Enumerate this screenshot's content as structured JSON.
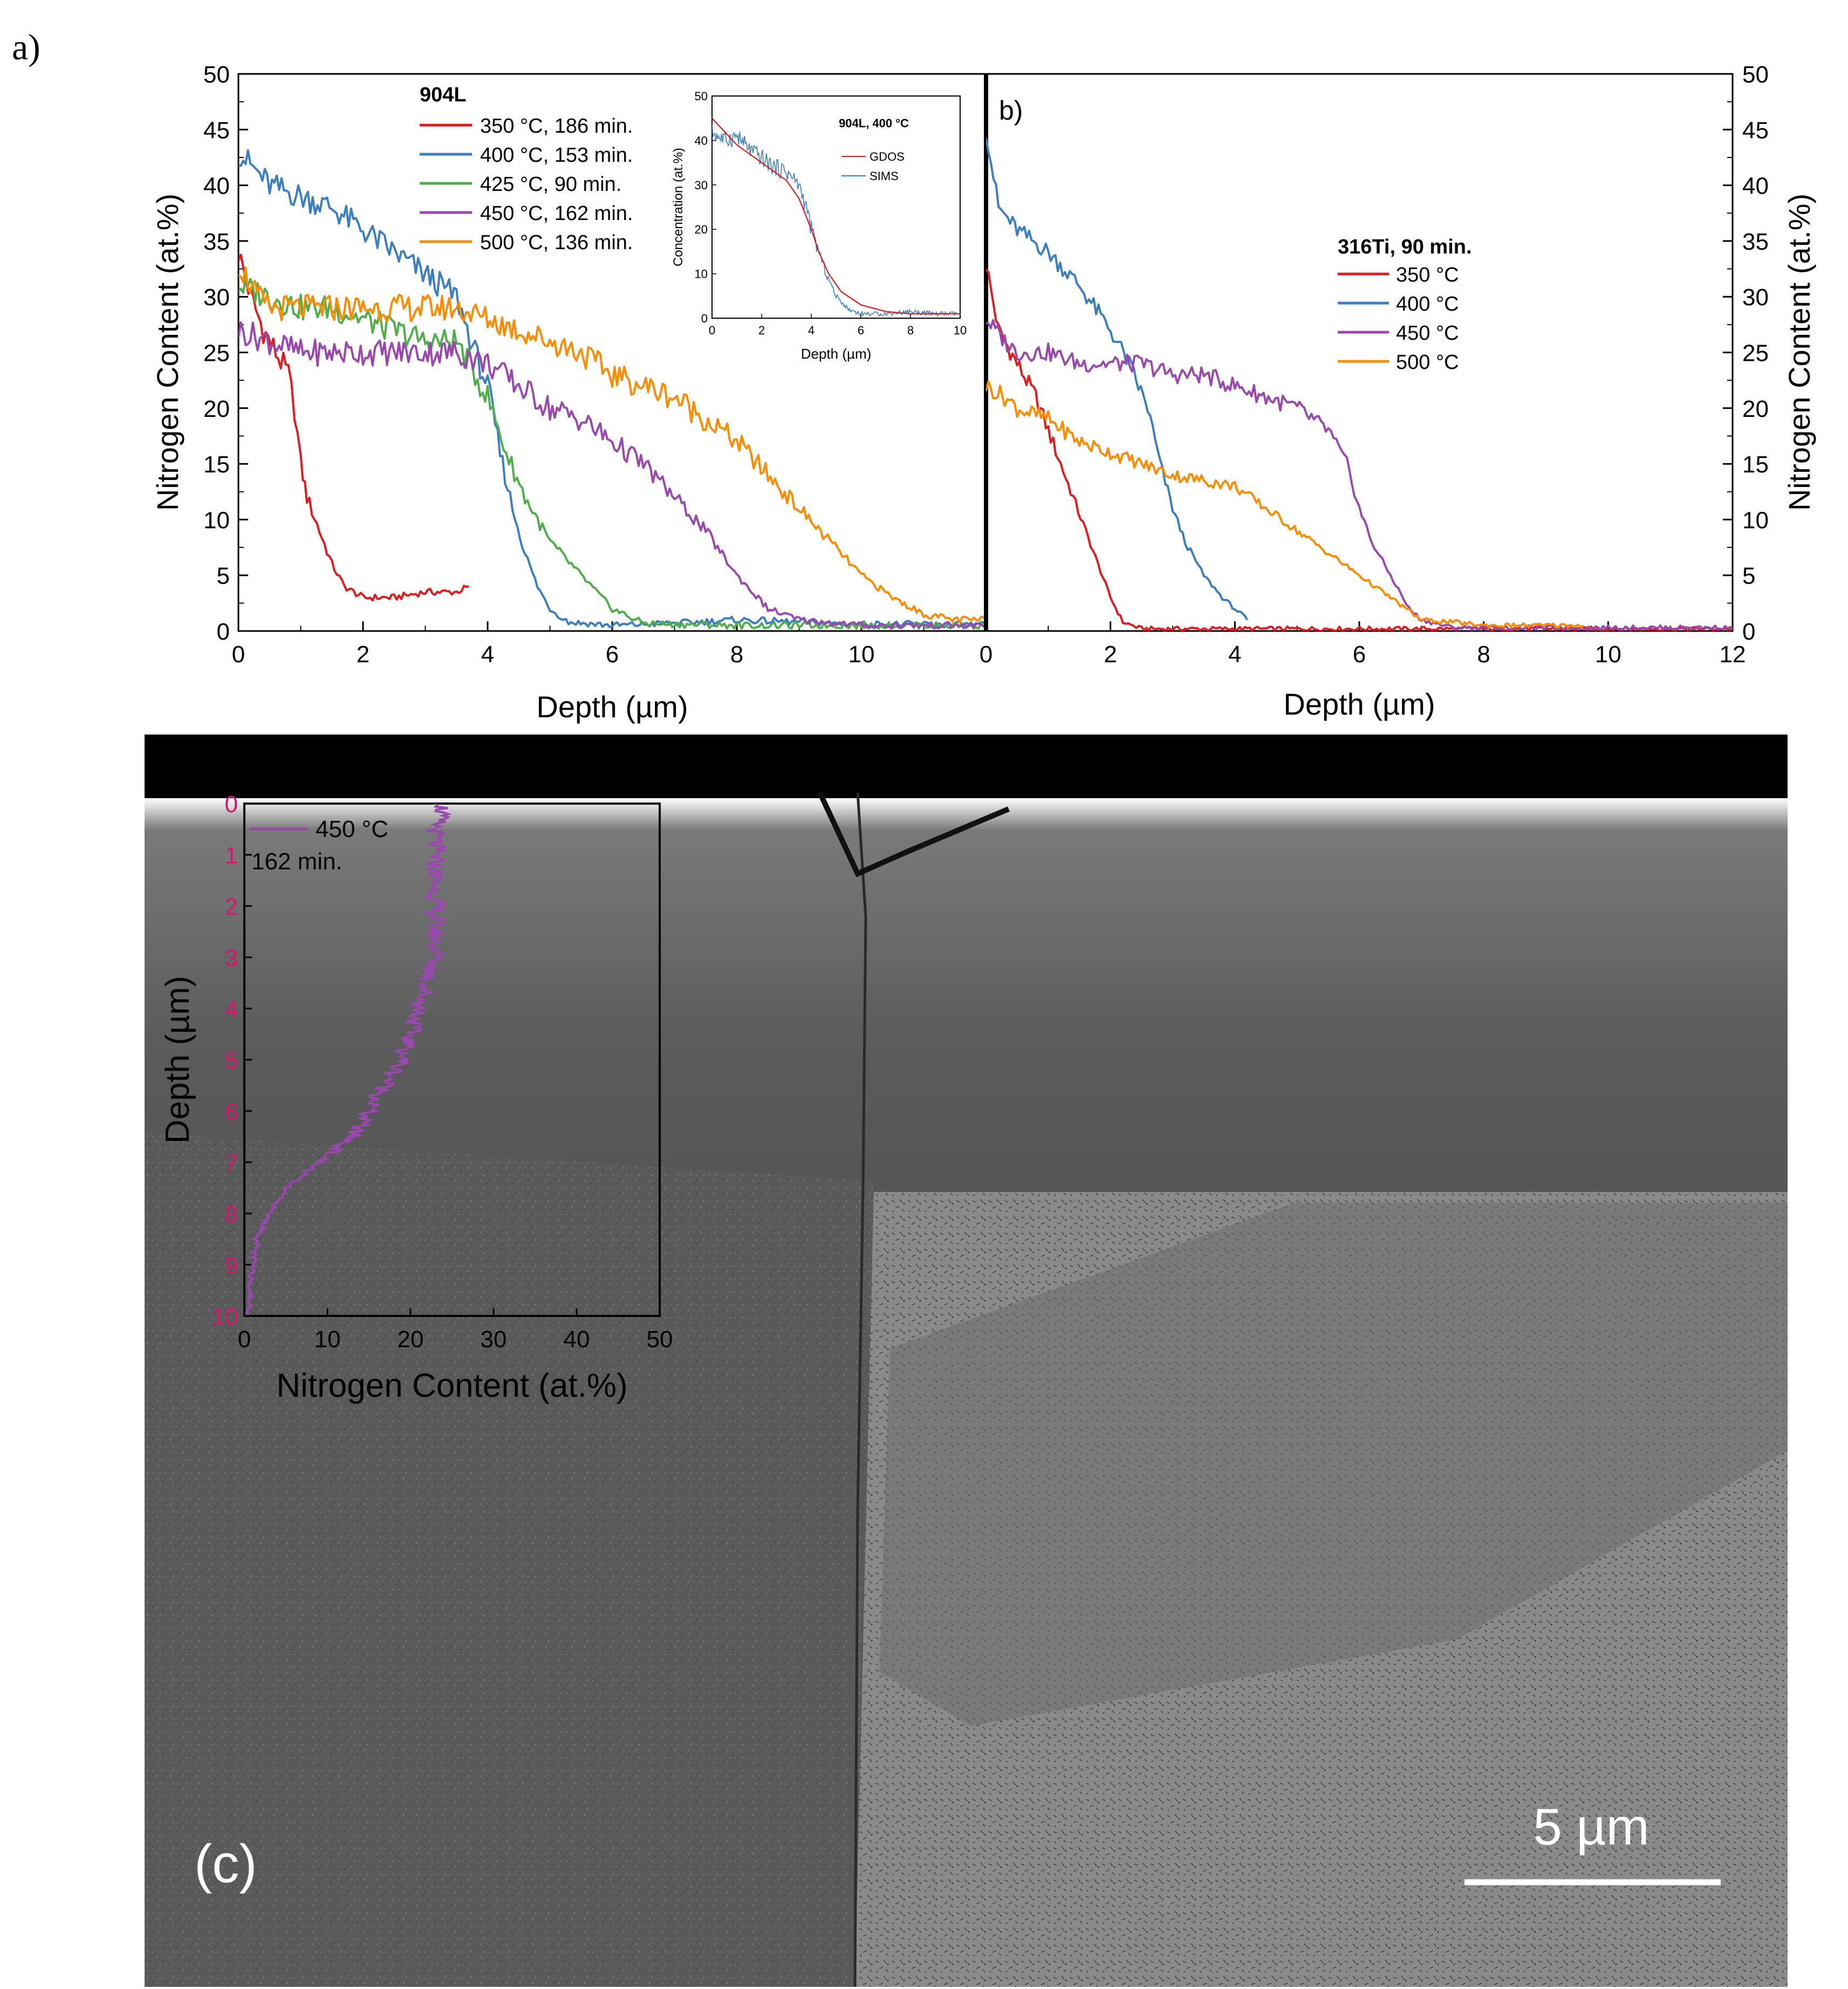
{
  "figure": {
    "panel_a_label": "a)",
    "panel_b_label": "b)",
    "panel_c_label": "(c)",
    "scale_bar_label": "5  µm",
    "colors": {
      "red": "#e41a1c",
      "blue": "#3a7fc1",
      "green": "#4daf4a",
      "purple": "#9b47b0",
      "orange": "#ff8c00",
      "tick_magenta": "#d6166e",
      "sem_dark": "#4a4a4a",
      "sem_light": "#8e8e8e"
    }
  },
  "chart_data": [
    {
      "id": "panel_a",
      "type": "line",
      "xlabel": "Depth (µm)",
      "ylabel": "Nitrogen Content (at.%)",
      "xlim": [
        0,
        12
      ],
      "ylim": [
        0,
        50
      ],
      "xticks": [
        "0",
        "2",
        "4",
        "6",
        "8",
        "10"
      ],
      "yticks": [
        "0",
        "5",
        "10",
        "15",
        "20",
        "25",
        "30",
        "35",
        "40",
        "45",
        "50"
      ],
      "legend_title": "904L",
      "legend_position": "top-center",
      "series": [
        {
          "name": "350 °C, 186 min.",
          "color": "red",
          "points": [
            [
              0,
              34
            ],
            [
              0.2,
              30
            ],
            [
              0.4,
              27
            ],
            [
              0.6,
              25
            ],
            [
              0.8,
              23
            ],
            [
              0.9,
              20
            ],
            [
              1.0,
              15
            ],
            [
              1.1,
              12
            ],
            [
              1.3,
              9
            ],
            [
              1.5,
              6
            ],
            [
              1.7,
              4
            ],
            [
              2.0,
              3
            ],
            [
              2.5,
              3
            ],
            [
              3.0,
              3.5
            ],
            [
              3.5,
              3.5
            ],
            [
              3.7,
              4
            ]
          ]
        },
        {
          "name": "400 °C, 153 min.",
          "color": "blue",
          "points": [
            [
              0,
              43
            ],
            [
              0.5,
              40
            ],
            [
              1.0,
              39
            ],
            [
              1.5,
              38
            ],
            [
              2.0,
              36
            ],
            [
              2.5,
              34
            ],
            [
              3.0,
              32
            ],
            [
              3.5,
              30
            ],
            [
              3.8,
              25
            ],
            [
              4.0,
              22
            ],
            [
              4.2,
              16
            ],
            [
              4.4,
              11
            ],
            [
              4.6,
              7
            ],
            [
              4.8,
              4
            ],
            [
              5.0,
              2
            ],
            [
              5.3,
              0.8
            ],
            [
              6,
              0.5
            ],
            [
              7,
              0.7
            ],
            [
              8,
              1
            ],
            [
              9,
              0.8
            ],
            [
              10,
              0.6
            ],
            [
              11,
              0.6
            ],
            [
              12,
              0.5
            ]
          ]
        },
        {
          "name": "425 °C, 90 min.",
          "color": "green",
          "points": [
            [
              0,
              31
            ],
            [
              0.5,
              30
            ],
            [
              1.0,
              29
            ],
            [
              1.5,
              29
            ],
            [
              2.0,
              28
            ],
            [
              2.5,
              27
            ],
            [
              3.0,
              26
            ],
            [
              3.5,
              26
            ],
            [
              3.8,
              23
            ],
            [
              4.0,
              21
            ],
            [
              4.3,
              16
            ],
            [
              4.6,
              12
            ],
            [
              5.0,
              8
            ],
            [
              5.5,
              5
            ],
            [
              6.0,
              2
            ],
            [
              6.5,
              0.7
            ],
            [
              7,
              0.6
            ],
            [
              8,
              0.5
            ],
            [
              9,
              0.5
            ],
            [
              10,
              0.5
            ],
            [
              11,
              0.5
            ],
            [
              12,
              0.5
            ]
          ]
        },
        {
          "name": "450 °C, 162 min.",
          "color": "purple",
          "points": [
            [
              0,
              27
            ],
            [
              0.5,
              26
            ],
            [
              1.0,
              25
            ],
            [
              1.5,
              25
            ],
            [
              2.0,
              25
            ],
            [
              2.5,
              25
            ],
            [
              3.0,
              25
            ],
            [
              3.5,
              25
            ],
            [
              4.0,
              24
            ],
            [
              4.5,
              22
            ],
            [
              5.0,
              20
            ],
            [
              5.5,
              19
            ],
            [
              6.0,
              17
            ],
            [
              6.5,
              15
            ],
            [
              7.0,
              12
            ],
            [
              7.5,
              9
            ],
            [
              8.0,
              5
            ],
            [
              8.5,
              2
            ],
            [
              9.0,
              1
            ],
            [
              10,
              0.5
            ],
            [
              11,
              0.5
            ],
            [
              12,
              0.5
            ]
          ]
        },
        {
          "name": "500 °C, 136 min.",
          "color": "orange",
          "points": [
            [
              0,
              33
            ],
            [
              0.3,
              30
            ],
            [
              0.5,
              29
            ],
            [
              1.0,
              29
            ],
            [
              1.5,
              29
            ],
            [
              2.0,
              29
            ],
            [
              2.5,
              29
            ],
            [
              3.0,
              29
            ],
            [
              3.5,
              29
            ],
            [
              4.0,
              28
            ],
            [
              4.5,
              27
            ],
            [
              5.0,
              26
            ],
            [
              5.5,
              25
            ],
            [
              6.0,
              23
            ],
            [
              6.5,
              22
            ],
            [
              7.0,
              21
            ],
            [
              7.5,
              19
            ],
            [
              8.0,
              17
            ],
            [
              8.5,
              14
            ],
            [
              9.0,
              11
            ],
            [
              9.5,
              8
            ],
            [
              10.0,
              5
            ],
            [
              10.5,
              3
            ],
            [
              11.0,
              1.5
            ],
            [
              11.5,
              1
            ],
            [
              12,
              1
            ]
          ]
        }
      ]
    },
    {
      "id": "panel_a_inset",
      "type": "line",
      "title": "904L, 400 °C",
      "xlabel": "Depth (µm)",
      "ylabel": "Concentration (at.%)",
      "xlim": [
        0,
        10
      ],
      "ylim": [
        0,
        50
      ],
      "xticks": [
        "0",
        "2",
        "4",
        "6",
        "8",
        "10"
      ],
      "yticks": [
        "0",
        "10",
        "20",
        "30",
        "40",
        "50"
      ],
      "series": [
        {
          "name": "GDOS",
          "color": "red",
          "points": [
            [
              0,
              45
            ],
            [
              0.5,
              42
            ],
            [
              1,
              39
            ],
            [
              1.5,
              37
            ],
            [
              2,
              35
            ],
            [
              2.5,
              33
            ],
            [
              3,
              31
            ],
            [
              3.5,
              27
            ],
            [
              4,
              20
            ],
            [
              4.3,
              15
            ],
            [
              4.7,
              10
            ],
            [
              5.2,
              6
            ],
            [
              6,
              3
            ],
            [
              7,
              1.5
            ],
            [
              8,
              1
            ],
            [
              10,
              1
            ]
          ]
        },
        {
          "name": "SIMS",
          "color": "blue",
          "points": [
            [
              0,
              42
            ],
            [
              0.5,
              40
            ],
            [
              1,
              41
            ],
            [
              1.5,
              38
            ],
            [
              2,
              36
            ],
            [
              2.5,
              34
            ],
            [
              3,
              33
            ],
            [
              3.5,
              30
            ],
            [
              3.8,
              25
            ],
            [
              4,
              20
            ],
            [
              4.3,
              15
            ],
            [
              4.6,
              10
            ],
            [
              5,
              5
            ],
            [
              5.5,
              2
            ],
            [
              6,
              1
            ],
            [
              7,
              1
            ],
            [
              8,
              1.5
            ],
            [
              9,
              1
            ],
            [
              10,
              1
            ]
          ]
        }
      ]
    },
    {
      "id": "panel_b",
      "type": "line",
      "xlabel": "Depth (µm)",
      "ylabel": "Nitrogen Content (at.%)",
      "xlim": [
        0,
        12
      ],
      "ylim": [
        0,
        50
      ],
      "xticks": [
        "0",
        "2",
        "4",
        "6",
        "8",
        "10",
        "12"
      ],
      "yticks": [
        "0",
        "5",
        "10",
        "15",
        "20",
        "25",
        "30",
        "35",
        "40",
        "45",
        "50"
      ],
      "legend_title": "316Ti, 90 min.",
      "legend_position": "center",
      "series": [
        {
          "name": "350 °C",
          "color": "red",
          "points": [
            [
              0,
              33
            ],
            [
              0.2,
              27
            ],
            [
              0.5,
              24
            ],
            [
              0.8,
              21
            ],
            [
              1.0,
              18
            ],
            [
              1.2,
              15
            ],
            [
              1.4,
              12
            ],
            [
              1.6,
              9
            ],
            [
              1.8,
              6
            ],
            [
              2.0,
              3
            ],
            [
              2.2,
              0.8
            ],
            [
              2.5,
              0.2
            ],
            [
              3,
              0.2
            ],
            [
              4,
              0.2
            ],
            [
              5,
              0.2
            ],
            [
              6,
              0.2
            ],
            [
              7,
              0.2
            ],
            [
              8,
              0.2
            ],
            [
              9,
              0.2
            ],
            [
              10,
              0.2
            ],
            [
              11,
              0.2
            ],
            [
              12,
              0.2
            ]
          ]
        },
        {
          "name": "400 °C",
          "color": "blue",
          "points": [
            [
              0,
              45
            ],
            [
              0.2,
              38
            ],
            [
              0.5,
              36
            ],
            [
              1.0,
              34
            ],
            [
              1.5,
              31
            ],
            [
              2.0,
              27
            ],
            [
              2.3,
              24
            ],
            [
              2.6,
              20
            ],
            [
              2.8,
              15
            ],
            [
              3.0,
              11
            ],
            [
              3.2,
              8
            ],
            [
              3.5,
              5
            ],
            [
              3.8,
              3
            ],
            [
              4.2,
              1
            ]
          ]
        },
        {
          "name": "450 °C",
          "color": "purple",
          "points": [
            [
              0,
              28
            ],
            [
              0.3,
              26
            ],
            [
              0.5,
              25
            ],
            [
              1.0,
              25
            ],
            [
              1.5,
              24
            ],
            [
              2.0,
              24
            ],
            [
              2.5,
              24
            ],
            [
              3.0,
              23
            ],
            [
              3.5,
              23
            ],
            [
              4.0,
              22
            ],
            [
              4.5,
              21
            ],
            [
              5.0,
              20
            ],
            [
              5.5,
              18
            ],
            [
              5.8,
              15
            ],
            [
              6.0,
              11
            ],
            [
              6.2,
              8
            ],
            [
              6.5,
              5
            ],
            [
              6.8,
              2
            ],
            [
              7.0,
              1
            ],
            [
              7.5,
              0.3
            ],
            [
              8,
              0.3
            ],
            [
              9,
              0.3
            ],
            [
              10,
              0.3
            ],
            [
              11,
              0.3
            ],
            [
              12,
              0.3
            ]
          ]
        },
        {
          "name": "500 °C",
          "color": "orange",
          "points": [
            [
              0,
              22
            ],
            [
              0.3,
              21
            ],
            [
              0.5,
              20
            ],
            [
              1.0,
              19
            ],
            [
              1.5,
              17
            ],
            [
              2.0,
              16
            ],
            [
              2.5,
              15
            ],
            [
              3.0,
              14
            ],
            [
              3.5,
              13.5
            ],
            [
              4.0,
              13
            ],
            [
              4.5,
              11
            ],
            [
              5.0,
              9
            ],
            [
              5.5,
              7
            ],
            [
              6.0,
              5
            ],
            [
              6.5,
              3
            ],
            [
              7.0,
              1
            ],
            [
              7.5,
              0.8
            ],
            [
              8.0,
              0.5
            ],
            [
              9,
              0.5
            ],
            [
              9.6,
              0.5
            ]
          ]
        }
      ]
    },
    {
      "id": "panel_c_inset",
      "type": "line",
      "xlabel": "Nitrogen Content (at.%)",
      "ylabel": "Depth (µm)",
      "xlim": [
        0,
        50
      ],
      "ylim": [
        0,
        10
      ],
      "xticks": [
        "0",
        "10",
        "20",
        "30",
        "40",
        "50"
      ],
      "yticks": [
        "0",
        "1",
        "2",
        "3",
        "4",
        "5",
        "6",
        "7",
        "8",
        "9",
        "10"
      ],
      "series": [
        {
          "name": "450 °C",
          "label_line2": "162 min.",
          "color": "purple",
          "points": [
            [
              24,
              0
            ],
            [
              23,
              0.5
            ],
            [
              23,
              1
            ],
            [
              23,
              1.5
            ],
            [
              23,
              2
            ],
            [
              23,
              2.5
            ],
            [
              23,
              3
            ],
            [
              22,
              3.5
            ],
            [
              21,
              4
            ],
            [
              20,
              4.5
            ],
            [
              19,
              5
            ],
            [
              17,
              5.5
            ],
            [
              15,
              6
            ],
            [
              13,
              6.5
            ],
            [
              9,
              7
            ],
            [
              5,
              7.5
            ],
            [
              3,
              8
            ],
            [
              1.5,
              8.5
            ],
            [
              1,
              9
            ],
            [
              0.5,
              10
            ]
          ]
        }
      ]
    }
  ]
}
